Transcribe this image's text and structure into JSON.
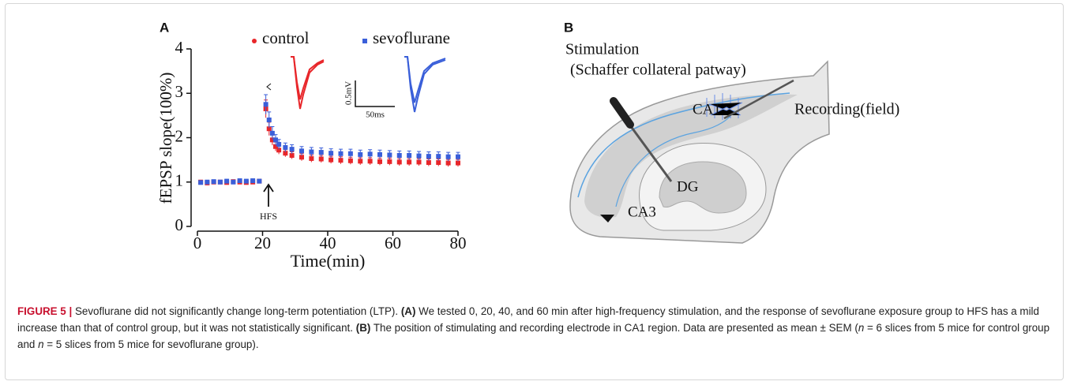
{
  "chart_data": {
    "type": "scatter",
    "panel_label": "A",
    "x_label": "Time(min)",
    "y_label": "fEPSP slope(100%)",
    "xlim": [
      0,
      80
    ],
    "ylim": [
      0,
      4
    ],
    "xticks": [
      0,
      20,
      40,
      60,
      80
    ],
    "yticks": [
      0,
      1,
      2,
      3,
      4
    ],
    "x": [
      1,
      3,
      5,
      7,
      9,
      11,
      13,
      15,
      17,
      19,
      21,
      22,
      23,
      24,
      25,
      27,
      29,
      32,
      35,
      38,
      41,
      44,
      47,
      50,
      53,
      56,
      59,
      62,
      65,
      68,
      71,
      74,
      77,
      80
    ],
    "series": [
      {
        "name": "control",
        "color": "#e8262a",
        "values": [
          1,
          0.98,
          1.0,
          1.0,
          0.99,
          1.01,
          1.0,
          0.99,
          1.0,
          1.02,
          2.65,
          2.2,
          1.95,
          1.8,
          1.72,
          1.65,
          1.6,
          1.56,
          1.53,
          1.52,
          1.5,
          1.49,
          1.48,
          1.47,
          1.47,
          1.46,
          1.46,
          1.45,
          1.45,
          1.45,
          1.44,
          1.44,
          1.43,
          1.43
        ],
        "errors": [
          0.03,
          0.03,
          0.03,
          0.03,
          0.03,
          0.03,
          0.03,
          0.03,
          0.03,
          0.03,
          0.2,
          0.15,
          0.12,
          0.1,
          0.09,
          0.08,
          0.08,
          0.08,
          0.08,
          0.08,
          0.08,
          0.08,
          0.08,
          0.08,
          0.08,
          0.08,
          0.08,
          0.08,
          0.08,
          0.08,
          0.08,
          0.08,
          0.08,
          0.08
        ]
      },
      {
        "name": "sevoflurane",
        "color": "#3a5fd9",
        "values": [
          0.99,
          1.0,
          1.01,
          1.0,
          1.02,
          1.0,
          1.03,
          1.02,
          1.03,
          1.02,
          2.75,
          2.4,
          2.1,
          1.95,
          1.85,
          1.78,
          1.74,
          1.7,
          1.68,
          1.67,
          1.65,
          1.64,
          1.64,
          1.62,
          1.63,
          1.62,
          1.61,
          1.6,
          1.6,
          1.59,
          1.58,
          1.58,
          1.57,
          1.57
        ],
        "errors": [
          0.04,
          0.04,
          0.04,
          0.04,
          0.04,
          0.04,
          0.04,
          0.04,
          0.04,
          0.04,
          0.22,
          0.18,
          0.15,
          0.12,
          0.11,
          0.1,
          0.1,
          0.1,
          0.1,
          0.1,
          0.1,
          0.1,
          0.1,
          0.1,
          0.1,
          0.1,
          0.1,
          0.1,
          0.1,
          0.1,
          0.1,
          0.1,
          0.1,
          0.1
        ]
      }
    ],
    "annotations": {
      "stimulus": "HFS",
      "scale_voltage": "0.5mV",
      "scale_time": "50ms"
    }
  },
  "diagram": {
    "panel_label": "B",
    "stimulation": "Stimulation",
    "pathway": "(Schaffer collateral patway)",
    "recording": "Recording(field)",
    "ca1": "CA1",
    "ca3": "CA3",
    "dg": "DG"
  },
  "caption": {
    "label": "FIGURE 5 |",
    "text_1": "Sevoflurane did not significantly change long-term potentiation (LTP).",
    "a": "(A)",
    "text_2": "We tested 0, 20, 40, and 60 min after high-frequency stimulation, and the response of sevoflurane exposure group to HFS has a mild increase than that of control group, but it was not statistically significant.",
    "b": "(B)",
    "text_3": "The position of stimulating and recording electrode in CA1 region. Data are presented as mean ± SEM (",
    "n1": "n",
    "text_4": "= 6 slices from 5 mice for control group and",
    "n2": "n",
    "text_5": "= 5 slices from 5 mice for sevoflurane group)."
  }
}
